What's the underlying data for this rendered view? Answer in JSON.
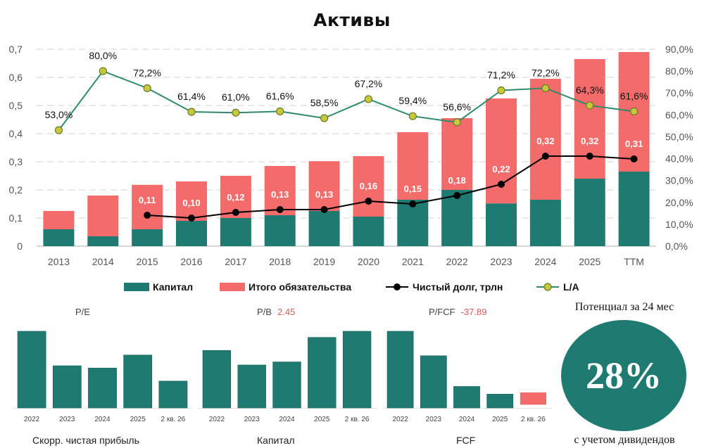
{
  "chart_data": [
    {
      "type": "bar",
      "title": "Активы",
      "categories": [
        "2013",
        "2014",
        "2015",
        "2016",
        "2017",
        "2018",
        "2019",
        "2020",
        "2021",
        "2022",
        "2023",
        "2024",
        "2025",
        "TTM"
      ],
      "y_left_ticks": [
        "0",
        "0,1",
        "0,2",
        "0,3",
        "0,4",
        "0,5",
        "0,6",
        "0,7"
      ],
      "ylim_left": [
        0,
        0.7
      ],
      "y_right_ticks": [
        "0,0%",
        "10,0%",
        "20,0%",
        "30,0%",
        "40,0%",
        "50,0%",
        "60,0%",
        "70,0%",
        "80,0%",
        "90,0%"
      ],
      "ylim_right": [
        0,
        90
      ],
      "grid": true,
      "legend_position": "bottom",
      "series": [
        {
          "name": "Капитал",
          "kind": "bar-stacked",
          "color": "#1f7a72",
          "values": [
            0.06,
            0.035,
            0.06,
            0.09,
            0.1,
            0.11,
            0.125,
            0.105,
            0.165,
            0.2,
            0.152,
            0.165,
            0.24,
            0.265
          ]
        },
        {
          "name": "Итого обязательства",
          "kind": "bar-stacked",
          "color": "#f46b6b",
          "values": [
            0.065,
            0.145,
            0.158,
            0.14,
            0.15,
            0.175,
            0.177,
            0.215,
            0.24,
            0.255,
            0.373,
            0.43,
            0.425,
            0.425
          ]
        },
        {
          "name": "Чистый долг, трлн",
          "kind": "line",
          "axis": "left",
          "color": "#000000",
          "values": [
            null,
            null,
            0.11,
            0.1,
            0.12,
            0.13,
            0.13,
            0.16,
            0.15,
            0.18,
            0.22,
            0.32,
            0.32,
            0.31
          ],
          "labels": [
            "",
            "",
            "0,11",
            "0,10",
            "0,12",
            "0,13",
            "0,13",
            "0,16",
            "0,15",
            "0,18",
            "0,22",
            "0,32",
            "0,32",
            "0,31"
          ]
        },
        {
          "name": "L/A",
          "kind": "line",
          "axis": "right",
          "color": "#2e8b6a",
          "marker_color": "#c8c83a",
          "values": [
            53.0,
            80.0,
            72.2,
            61.4,
            61.0,
            61.6,
            58.5,
            67.2,
            59.4,
            56.6,
            71.2,
            72.2,
            64.3,
            61.6
          ],
          "labels": [
            "53,0%",
            "80,0%",
            "72,2%",
            "61,4%",
            "61,0%",
            "61,6%",
            "58,5%",
            "67,2%",
            "59,4%",
            "56,6%",
            "71,2%",
            "72,2%",
            "64,3%",
            "61,6%"
          ]
        }
      ]
    },
    {
      "type": "bar",
      "title": "P/E",
      "subtitle": "",
      "caption": "Скорр. чистая прибыль",
      "categories": [
        "2022",
        "2023",
        "2024",
        "2025",
        "2 кв. 26"
      ],
      "series": [
        {
          "values": [
            1.0,
            0.55,
            0.52,
            0.69,
            0.35
          ]
        }
      ],
      "ylim": [
        -0.25,
        1.0
      ]
    },
    {
      "type": "bar",
      "title": "P/B",
      "subtitle": "2.45",
      "caption": "Капитал",
      "categories": [
        "2022",
        "2023",
        "2024",
        "2025",
        "2 кв. 26"
      ],
      "series": [
        {
          "values": [
            0.75,
            0.56,
            0.6,
            0.92,
            1.0
          ]
        }
      ],
      "ylim": [
        -0.25,
        1.0
      ]
    },
    {
      "type": "bar",
      "title": "P/FCF",
      "subtitle": "-37.89",
      "caption": "FCF",
      "categories": [
        "2022",
        "2023",
        "2024",
        "2025",
        "2 кв. 26"
      ],
      "series": [
        {
          "values": [
            1.0,
            0.68,
            0.28,
            0.18,
            -0.16
          ]
        }
      ],
      "ylim": [
        -0.25,
        1.0
      ]
    }
  ],
  "potential": {
    "title": "Потенциал за 24 мес",
    "value": "28%",
    "subtitle": "с учетом дивидендов"
  },
  "colors": {
    "teal": "#1f7a72",
    "coral": "#f46b6b",
    "negative": "#f46b6b",
    "grid": "#d9d9d9"
  }
}
